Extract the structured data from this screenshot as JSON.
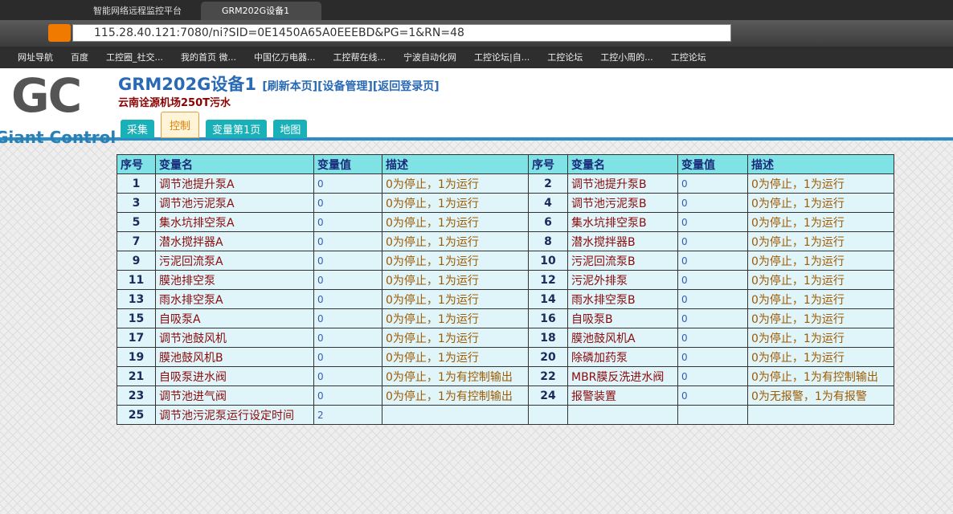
{
  "browser": {
    "tabs": [
      "智能网络远程监控平台",
      "GRM202G设备1"
    ],
    "url": "115.28.40.121:7080/ni?SID=0E1450A65A0EEEBD&PG=1&RN=48",
    "bookmarks": [
      "网址导航",
      "百度",
      "工控圈_社交...",
      "我的首页 微...",
      "中国亿万电器...",
      "工控帮在线...",
      "宁波自动化网",
      "工控论坛|自...",
      "工控论坛",
      "工控小周的...",
      "工控论坛"
    ]
  },
  "header": {
    "logo": "GC",
    "brand": "Giant Control",
    "title": "GRM202G设备1",
    "links": [
      "[刷新本页]",
      "[设备管理]",
      "[返回登录页]"
    ],
    "subtitle": "云南诠源机场250T污水",
    "tabs": [
      "采集",
      "控制",
      "变量第1页",
      "地图"
    ]
  },
  "table": {
    "headers": [
      "序号",
      "变量名",
      "变量值",
      "描述",
      "序号",
      "变量名",
      "变量值",
      "描述"
    ],
    "rows": [
      [
        1,
        "调节池提升泵A",
        0,
        "0为停止，1为运行",
        2,
        "调节池提升泵B",
        0,
        "0为停止，1为运行"
      ],
      [
        3,
        "调节池污泥泵A",
        0,
        "0为停止，1为运行",
        4,
        "调节池污泥泵B",
        0,
        "0为停止，1为运行"
      ],
      [
        5,
        "集水坑排空泵A",
        0,
        "0为停止，1为运行",
        6,
        "集水坑排空泵B",
        0,
        "0为停止，1为运行"
      ],
      [
        7,
        "潜水搅拌器A",
        0,
        "0为停止，1为运行",
        8,
        "潜水搅拌器B",
        0,
        "0为停止，1为运行"
      ],
      [
        9,
        "污泥回流泵A",
        0,
        "0为停止，1为运行",
        10,
        "污泥回流泵B",
        0,
        "0为停止，1为运行"
      ],
      [
        11,
        "膜池排空泵",
        0,
        "0为停止，1为运行",
        12,
        "污泥外排泵",
        0,
        "0为停止，1为运行"
      ],
      [
        13,
        "雨水排空泵A",
        0,
        "0为停止，1为运行",
        14,
        "雨水排空泵B",
        0,
        "0为停止，1为运行"
      ],
      [
        15,
        "自吸泵A",
        0,
        "0为停止，1为运行",
        16,
        "自吸泵B",
        0,
        "0为停止，1为运行"
      ],
      [
        17,
        "调节池鼓风机",
        0,
        "0为停止，1为运行",
        18,
        "膜池鼓风机A",
        0,
        "0为停止，1为运行"
      ],
      [
        19,
        "膜池鼓风机B",
        0,
        "0为停止，1为运行",
        20,
        "除磷加药泵",
        0,
        "0为停止，1为运行"
      ],
      [
        21,
        "自吸泵进水阀",
        0,
        "0为停止，1为有控制输出",
        22,
        "MBR膜反洗进水阀",
        0,
        "0为停止，1为有控制输出"
      ],
      [
        23,
        "调节池进气阀",
        0,
        "0为停止，1为有控制输出",
        24,
        "报警装置",
        0,
        "0为无报警，1为有报警"
      ],
      [
        25,
        "调节池污泥泵运行设定时间",
        2
      ]
    ]
  }
}
